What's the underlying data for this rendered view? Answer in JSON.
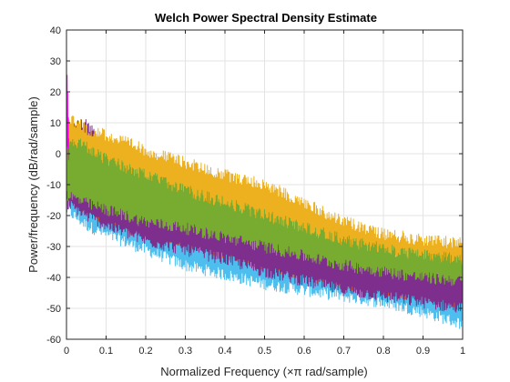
{
  "chart_data": {
    "type": "line",
    "title": "Welch Power Spectral Density Estimate",
    "xlabel": "Normalized Frequency  (×π rad/sample)",
    "ylabel": "Power/frequency (dB/rad/sample)",
    "xlim": [
      0,
      1
    ],
    "ylim": [
      -60,
      40
    ],
    "x_ticks": [
      "0",
      "0.1",
      "0.2",
      "0.3",
      "0.4",
      "0.5",
      "0.6",
      "0.7",
      "0.8",
      "0.9",
      "1"
    ],
    "y_ticks": [
      "40",
      "30",
      "20",
      "10",
      "0",
      "-10",
      "-20",
      "-30",
      "-40",
      "-50",
      "-60"
    ],
    "grid": true,
    "legend": "none",
    "series_style": "noisy filled PSD bands",
    "series": [
      {
        "color": "#4DBEEE",
        "x": [
          0,
          0.05,
          0.1,
          0.2,
          0.3,
          0.4,
          0.5,
          0.6,
          0.7,
          0.8,
          0.9,
          1.0
        ],
        "upper": [
          5,
          -2,
          -5,
          -12,
          -18,
          -22,
          -27,
          -32,
          -35,
          -37,
          -39,
          -40
        ],
        "lower": [
          -20,
          -25,
          -28,
          -33,
          -38,
          -41,
          -44,
          -46,
          -48,
          -50,
          -53,
          -57
        ]
      },
      {
        "color": "#D95319",
        "x": [
          0,
          0.05,
          0.1,
          0.2,
          0.3,
          0.4,
          0.5,
          0.6,
          0.7,
          0.8,
          0.9,
          1.0
        ],
        "upper": [
          8,
          5,
          -2,
          -8,
          -14,
          -18,
          -23,
          -28,
          -32,
          -34,
          -36,
          -38
        ],
        "lower": [
          -15,
          -20,
          -23,
          -28,
          -30,
          -34,
          -38,
          -41,
          -44,
          -46,
          -48,
          -50
        ]
      },
      {
        "color": "#7E2F8E",
        "x": [
          0,
          0.05,
          0.1,
          0.2,
          0.3,
          0.4,
          0.5,
          0.6,
          0.7,
          0.8,
          0.9,
          1.0
        ],
        "upper": [
          10,
          12,
          2,
          -6,
          -12,
          -16,
          -21,
          -26,
          -30,
          -32,
          -35,
          -37
        ],
        "lower": [
          -18,
          -22,
          -25,
          -30,
          -33,
          -36,
          -40,
          -43,
          -46,
          -48,
          -50,
          -52
        ]
      },
      {
        "color": "#EDB120",
        "x": [
          0,
          0.05,
          0.1,
          0.2,
          0.3,
          0.4,
          0.5,
          0.6,
          0.7,
          0.8,
          0.9,
          1.0
        ],
        "upper": [
          14,
          10,
          8,
          3,
          -1,
          -5,
          -8,
          -14,
          -20,
          -24,
          -26,
          -27
        ],
        "lower": [
          -10,
          -12,
          -14,
          -17,
          -19,
          -22,
          -26,
          -30,
          -33,
          -36,
          -38,
          -40
        ]
      },
      {
        "color": "#77AC30",
        "x": [
          0,
          0.05,
          0.1,
          0.2,
          0.3,
          0.4,
          0.5,
          0.6,
          0.7,
          0.8,
          0.9,
          1.0
        ],
        "upper": [
          7,
          4,
          0,
          -5,
          -10,
          -14,
          -18,
          -22,
          -26,
          -29,
          -31,
          -32
        ],
        "lower": [
          -15,
          -18,
          -20,
          -24,
          -26,
          -29,
          -32,
          -35,
          -38,
          -40,
          -42,
          -43
        ]
      },
      {
        "color": "#FF00FF",
        "x": [
          0,
          0.003,
          0.006
        ],
        "upper": [
          36,
          22,
          8
        ],
        "lower": [
          5,
          0,
          -5
        ]
      }
    ]
  }
}
